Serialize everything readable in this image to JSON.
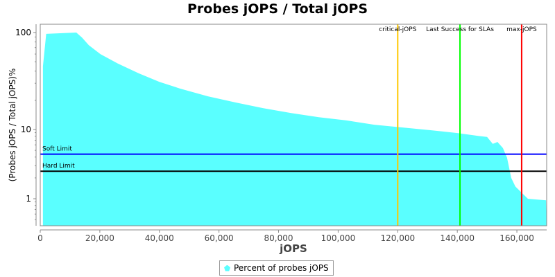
{
  "chart_data": {
    "type": "area",
    "title": "Probes jOPS / Total jOPS",
    "xlabel": "jOPS",
    "ylabel": "(Probes jOPS / Total jOPS)%",
    "xlim": [
      0,
      170000
    ],
    "ylim": [
      0.42,
      130
    ],
    "yscale": "log",
    "x_ticks": [
      0,
      20000,
      40000,
      60000,
      80000,
      100000,
      120000,
      140000,
      160000
    ],
    "x_tick_labels": [
      "0",
      "20,000",
      "40,000",
      "60,000",
      "80,000",
      "100,000",
      "120,000",
      "140,000",
      "160,000"
    ],
    "y_ticks": [
      1,
      10,
      100
    ],
    "y_tick_labels": [
      "1",
      "10",
      "100"
    ],
    "grid": false,
    "legend_position": "bottom",
    "series": [
      {
        "name": "Percent of probes jOPS",
        "color": "#5affff",
        "x": [
          900,
          2000,
          12100,
          14000,
          16300,
          20200,
          26000,
          33000,
          40000,
          47000,
          56300,
          65600,
          74900,
          84200,
          93500,
          102800,
          112100,
          121400,
          130700,
          140000,
          147000,
          150000,
          151900,
          153500,
          155300,
          156700,
          158100,
          159500,
          163700,
          169800
        ],
        "y": [
          45,
          97,
          100,
          89,
          74,
          60,
          48,
          38,
          31,
          26.4,
          22,
          19,
          16.6,
          14.8,
          13.4,
          12.4,
          11.2,
          10.5,
          9.8,
          8.9,
          8.1,
          7.8,
          6.2,
          6.6,
          5.4,
          3.9,
          2.0,
          1.5,
          1.0,
          0.95
        ]
      }
    ],
    "horizontal_lines": [
      {
        "label": "Soft Limit",
        "value": 4.4,
        "color": "#0000ff"
      },
      {
        "label": "Hard Limit",
        "value": 2.5,
        "color": "#000000"
      }
    ],
    "vertical_lines": [
      {
        "label": "critical-jOPS",
        "value": 120000,
        "color": "#ffc800"
      },
      {
        "label": "Last Success for SLAs",
        "value": 140900,
        "color": "#00ff00"
      },
      {
        "label": "max-jOPS",
        "value": 161600,
        "color": "#ff0000"
      }
    ]
  }
}
